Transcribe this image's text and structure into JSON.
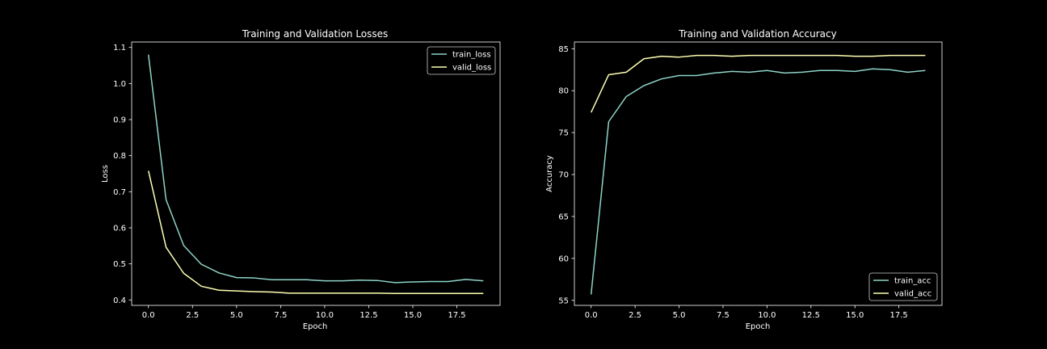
{
  "figure": {
    "background": "#000000",
    "foreground": "#ffffff"
  },
  "chart_data": [
    {
      "type": "line",
      "title": "Training and Validation Losses",
      "xlabel": "Epoch",
      "ylabel": "Loss",
      "xlim": [
        -0.95,
        19.95
      ],
      "ylim": [
        0.385,
        1.115
      ],
      "xticks": [
        0.0,
        2.5,
        5.0,
        7.5,
        10.0,
        12.5,
        15.0,
        17.5
      ],
      "xtick_labels": [
        "0.0",
        "2.5",
        "5.0",
        "7.5",
        "10.0",
        "12.5",
        "15.0",
        "17.5"
      ],
      "yticks": [
        0.4,
        0.5,
        0.6,
        0.7,
        0.8,
        0.9,
        1.0,
        1.1
      ],
      "ytick_labels": [
        "0.4",
        "0.5",
        "0.6",
        "0.7",
        "0.8",
        "0.9",
        "1.0",
        "1.1"
      ],
      "grid": false,
      "legend_position": "top-right",
      "x": [
        0,
        1,
        2,
        3,
        4,
        5,
        6,
        7,
        8,
        9,
        10,
        11,
        12,
        13,
        14,
        15,
        16,
        17,
        18,
        19
      ],
      "series": [
        {
          "name": "train_loss",
          "color": "#8dd3c7",
          "values": [
            1.08,
            0.678,
            0.551,
            0.499,
            0.475,
            0.462,
            0.461,
            0.456,
            0.456,
            0.456,
            0.453,
            0.453,
            0.455,
            0.454,
            0.448,
            0.45,
            0.451,
            0.451,
            0.457,
            0.453
          ]
        },
        {
          "name": "valid_loss",
          "color": "#feffb3",
          "values": [
            0.758,
            0.546,
            0.474,
            0.438,
            0.427,
            0.425,
            0.423,
            0.422,
            0.419,
            0.419,
            0.419,
            0.419,
            0.419,
            0.419,
            0.418,
            0.418,
            0.418,
            0.418,
            0.418,
            0.418
          ]
        }
      ]
    },
    {
      "type": "line",
      "title": "Training and Validation Accuracy",
      "xlabel": "Epoch",
      "ylabel": "Accuracy",
      "xlim": [
        -0.95,
        19.95
      ],
      "ylim": [
        54.4,
        85.8
      ],
      "xticks": [
        0.0,
        2.5,
        5.0,
        7.5,
        10.0,
        12.5,
        15.0,
        17.5
      ],
      "xtick_labels": [
        "0.0",
        "2.5",
        "5.0",
        "7.5",
        "10.0",
        "12.5",
        "15.0",
        "17.5"
      ],
      "yticks": [
        55,
        60,
        65,
        70,
        75,
        80,
        85
      ],
      "ytick_labels": [
        "55",
        "60",
        "65",
        "70",
        "75",
        "80",
        "85"
      ],
      "grid": false,
      "legend_position": "bottom-right",
      "x": [
        0,
        1,
        2,
        3,
        4,
        5,
        6,
        7,
        8,
        9,
        10,
        11,
        12,
        13,
        14,
        15,
        16,
        17,
        18,
        19
      ],
      "series": [
        {
          "name": "train_acc",
          "color": "#8dd3c7",
          "values": [
            55.7,
            76.3,
            79.3,
            80.6,
            81.4,
            81.8,
            81.8,
            82.1,
            82.3,
            82.2,
            82.4,
            82.1,
            82.2,
            82.4,
            82.4,
            82.3,
            82.6,
            82.5,
            82.2,
            82.4
          ]
        },
        {
          "name": "valid_acc",
          "color": "#feffb3",
          "values": [
            77.4,
            81.9,
            82.2,
            83.8,
            84.1,
            84.0,
            84.2,
            84.2,
            84.1,
            84.2,
            84.2,
            84.2,
            84.2,
            84.2,
            84.2,
            84.1,
            84.1,
            84.2,
            84.2,
            84.2
          ]
        }
      ]
    }
  ]
}
